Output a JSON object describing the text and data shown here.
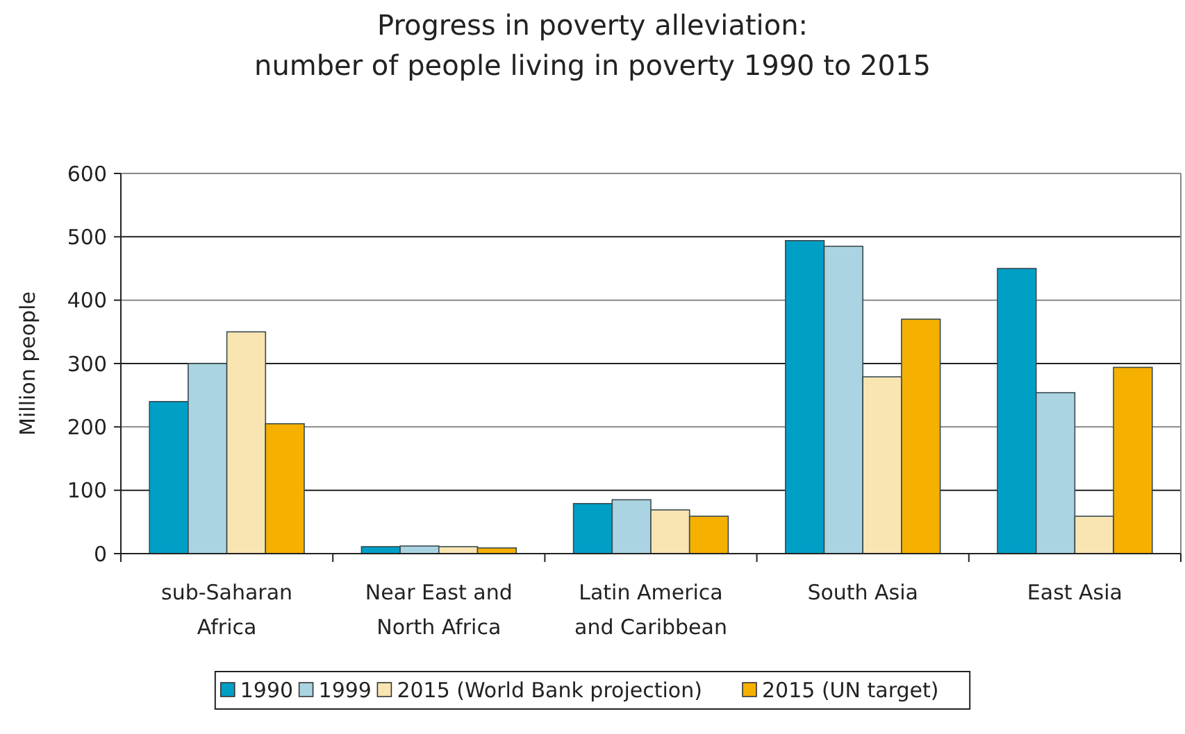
{
  "chart_data": {
    "type": "bar",
    "title": "Progress in poverty alleviation:\nnumber of people living in poverty 1990 to 2015",
    "ylabel": "Million people",
    "categories": [
      "sub-Saharan\nAfrica",
      "Near East and\nNorth Africa",
      "Latin America\nand Caribbean",
      "South Asia",
      "East Asia"
    ],
    "series": [
      {
        "name": "1990",
        "color": "#009fc6",
        "values": [
          240,
          11,
          79,
          494,
          450
        ]
      },
      {
        "name": "1999",
        "color": "#abd4e2",
        "values": [
          300,
          12,
          85,
          485,
          254
        ]
      },
      {
        "name": "2015 (World Bank projection)",
        "color": "#f8e5b2",
        "values": [
          350,
          11,
          69,
          279,
          59
        ]
      },
      {
        "name": "2015 (UN target)",
        "color": "#f6b000",
        "values": [
          205,
          9,
          59,
          370,
          294
        ]
      }
    ],
    "ylim": [
      0,
      600
    ],
    "yticks": [
      0,
      100,
      200,
      300,
      400,
      500,
      600
    ],
    "grid": "y",
    "legend": "bottom"
  }
}
